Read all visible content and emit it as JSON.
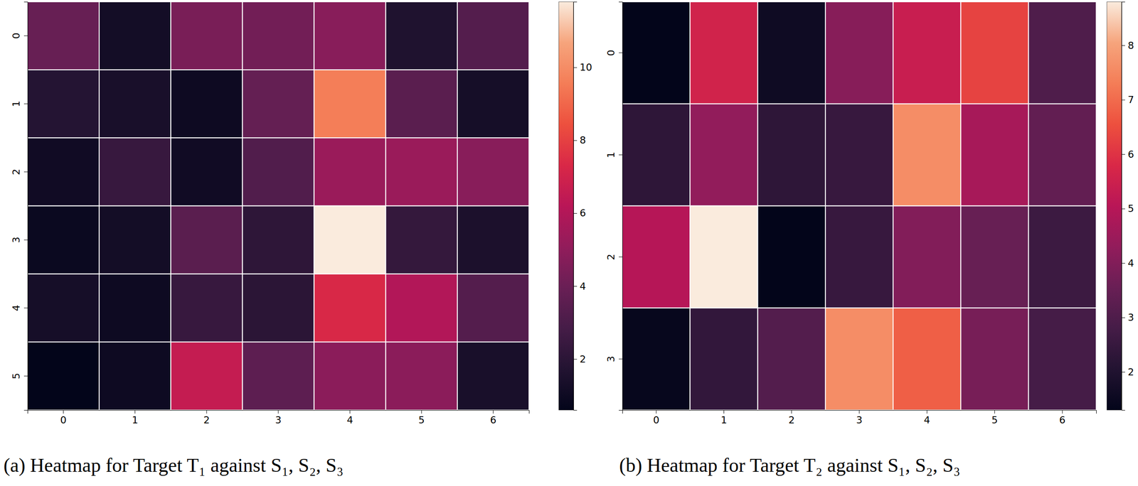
{
  "chart_data": [
    {
      "type": "heatmap",
      "title": "(a) Heatmap for Target T₁ against S₁, S₂, S₃",
      "x": [
        0,
        1,
        2,
        3,
        4,
        5,
        6
      ],
      "y": [
        0,
        1,
        2,
        3,
        4,
        5
      ],
      "values": [
        [
          3.9,
          1.2,
          4.4,
          4.2,
          4.8,
          1.6,
          3.3
        ],
        [
          1.8,
          1.4,
          1.0,
          3.8,
          9.6,
          3.5,
          1.3
        ],
        [
          1.1,
          2.4,
          1.1,
          3.2,
          5.3,
          5.3,
          4.8
        ],
        [
          0.9,
          1.2,
          3.5,
          2.1,
          11.8,
          2.3,
          1.5
        ],
        [
          1.3,
          1.0,
          2.4,
          2.0,
          7.3,
          6.0,
          3.3
        ],
        [
          0.6,
          1.0,
          6.6,
          3.6,
          4.9,
          4.9,
          1.4
        ]
      ],
      "colorbar": {
        "range": [
          0.6,
          11.8
        ],
        "ticks": [
          2,
          4,
          6,
          8,
          10
        ]
      }
    },
    {
      "type": "heatmap",
      "title": "(b) Heatmap for Target T₂ against S₁, S₂, S₃",
      "x": [
        0,
        1,
        2,
        3,
        4,
        5,
        6
      ],
      "y": [
        0,
        1,
        2,
        3
      ],
      "values": [
        [
          1.3,
          5.6,
          1.6,
          4.1,
          5.4,
          6.3,
          3.0
        ],
        [
          2.3,
          4.3,
          2.3,
          2.5,
          7.6,
          4.7,
          3.4
        ],
        [
          5.0,
          8.8,
          1.3,
          2.5,
          4.0,
          3.5,
          2.6
        ],
        [
          1.4,
          2.4,
          3.1,
          7.6,
          6.8,
          3.8,
          2.8
        ]
      ],
      "colorbar": {
        "range": [
          1.3,
          8.8
        ],
        "ticks": [
          2,
          3,
          4,
          5,
          6,
          7,
          8
        ]
      }
    }
  ]
}
